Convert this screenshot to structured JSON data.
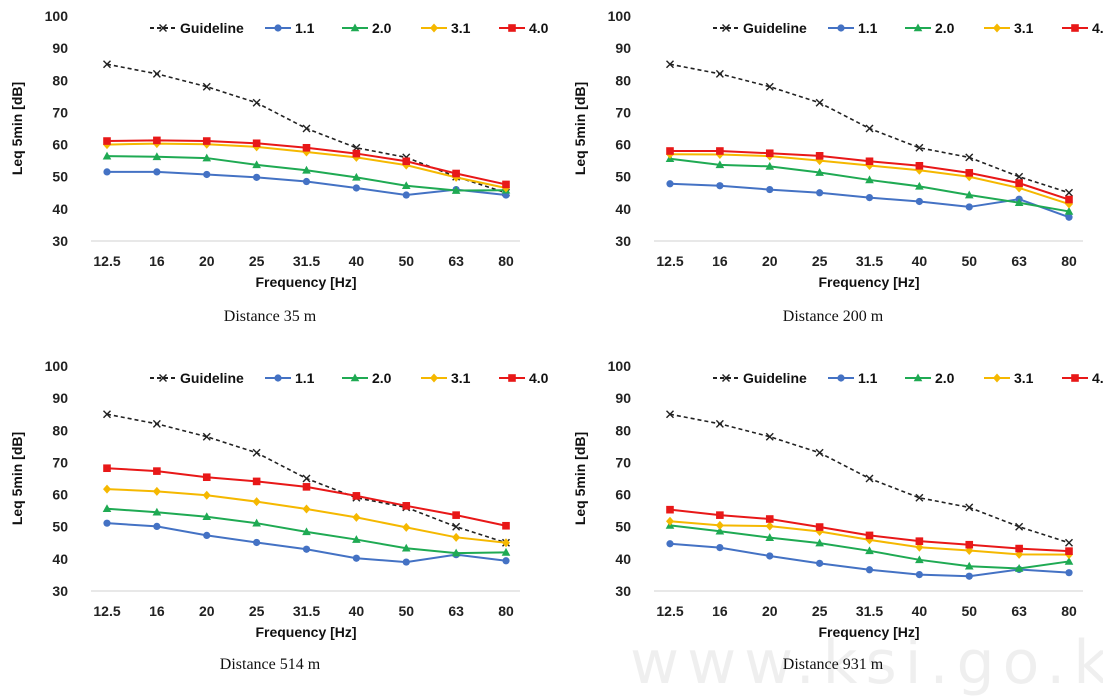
{
  "watermark": "www.ksi.go.kr",
  "legend": [
    {
      "name": "Guideline",
      "color": "#222222",
      "dash": true,
      "marker": "x"
    },
    {
      "name": "1.1",
      "color": "#4472C4",
      "dash": false,
      "marker": "circle"
    },
    {
      "name": "2.0",
      "color": "#1FAA53",
      "dash": false,
      "marker": "triangle"
    },
    {
      "name": "3.1",
      "color": "#F5B800",
      "dash": false,
      "marker": "diamond"
    },
    {
      "name": "4.0",
      "color": "#E81818",
      "dash": false,
      "marker": "square"
    }
  ],
  "chart_data": [
    {
      "type": "line",
      "caption": "Distance 35 m",
      "xlabel": "Frequency [Hz]",
      "ylabel": "Leq 5min [dB]",
      "categories": [
        "12.5",
        "16",
        "20",
        "25",
        "31.5",
        "40",
        "50",
        "63",
        "80"
      ],
      "ylim": [
        30,
        100
      ],
      "yticks": [
        "30",
        "40",
        "50",
        "60",
        "70",
        "80",
        "90",
        "100"
      ],
      "legend_position": "top",
      "series": [
        {
          "name": "Guideline",
          "values": [
            85,
            82,
            78,
            73,
            65,
            59,
            56,
            50,
            45
          ]
        },
        {
          "name": "1.1",
          "values": [
            51.5,
            51.5,
            50.7,
            49.8,
            48.5,
            46.5,
            44.3,
            46.0,
            44.3
          ]
        },
        {
          "name": "2.0",
          "values": [
            56.4,
            56.2,
            55.8,
            53.7,
            52.0,
            49.8,
            47.2,
            45.7,
            45.8
          ]
        },
        {
          "name": "3.1",
          "values": [
            60.0,
            60.3,
            60.1,
            59.3,
            57.7,
            56.0,
            53.6,
            49.8,
            46.5
          ]
        },
        {
          "name": "4.0",
          "values": [
            61.1,
            61.3,
            61.1,
            60.4,
            59.0,
            57.2,
            54.8,
            51.0,
            47.6
          ]
        }
      ]
    },
    {
      "type": "line",
      "caption": "Distance 200 m",
      "xlabel": "Frequency [Hz]",
      "ylabel": "Leq 5min [dB]",
      "categories": [
        "12.5",
        "16",
        "20",
        "25",
        "31.5",
        "40",
        "50",
        "63",
        "80"
      ],
      "ylim": [
        30,
        100
      ],
      "yticks": [
        "30",
        "40",
        "50",
        "60",
        "70",
        "80",
        "90",
        "100"
      ],
      "legend_position": "top",
      "series": [
        {
          "name": "Guideline",
          "values": [
            85,
            82,
            78,
            73,
            65,
            59,
            56,
            50,
            45
          ]
        },
        {
          "name": "1.1",
          "values": [
            47.8,
            47.2,
            46.0,
            45.0,
            43.5,
            42.3,
            40.6,
            43.0,
            37.4
          ]
        },
        {
          "name": "2.0",
          "values": [
            55.6,
            53.7,
            53.2,
            51.3,
            49.0,
            47.0,
            44.3,
            41.9,
            39.2
          ]
        },
        {
          "name": "3.1",
          "values": [
            57.0,
            56.9,
            56.4,
            55.0,
            53.5,
            52.0,
            50.0,
            46.5,
            41.5
          ]
        },
        {
          "name": "4.0",
          "values": [
            58.0,
            58.0,
            57.3,
            56.5,
            54.8,
            53.4,
            51.2,
            48.0,
            42.9
          ]
        }
      ]
    },
    {
      "type": "line",
      "caption": "Distance 514 m",
      "xlabel": "Frequency [Hz]",
      "ylabel": "Leq 5min [dB]",
      "categories": [
        "12.5",
        "16",
        "20",
        "25",
        "31.5",
        "40",
        "50",
        "63",
        "80"
      ],
      "ylim": [
        30,
        100
      ],
      "yticks": [
        "30",
        "40",
        "50",
        "60",
        "70",
        "80",
        "90",
        "100"
      ],
      "legend_position": "top",
      "series": [
        {
          "name": "Guideline",
          "values": [
            85,
            82,
            78,
            73,
            65,
            59,
            56,
            50,
            45
          ]
        },
        {
          "name": "1.1",
          "values": [
            51.1,
            50.1,
            47.3,
            45.1,
            43.0,
            40.2,
            39.0,
            41.3,
            39.4
          ]
        },
        {
          "name": "2.0",
          "values": [
            55.6,
            54.5,
            53.1,
            51.1,
            48.4,
            46.0,
            43.3,
            41.8,
            42.0
          ]
        },
        {
          "name": "3.1",
          "values": [
            61.7,
            61.0,
            59.8,
            57.8,
            55.5,
            52.9,
            49.8,
            46.7,
            45.0
          ]
        },
        {
          "name": "4.0",
          "values": [
            68.2,
            67.3,
            65.4,
            64.1,
            62.4,
            59.6,
            56.5,
            53.6,
            50.3
          ]
        }
      ]
    },
    {
      "type": "line",
      "caption": "Distance 931 m",
      "xlabel": "Frequency [Hz]",
      "ylabel": "Leq 5min [dB]",
      "categories": [
        "12.5",
        "16",
        "20",
        "25",
        "31.5",
        "40",
        "50",
        "63",
        "80"
      ],
      "ylim": [
        30,
        100
      ],
      "yticks": [
        "30",
        "40",
        "50",
        "60",
        "70",
        "80",
        "90",
        "100"
      ],
      "legend_position": "top",
      "series": [
        {
          "name": "Guideline",
          "values": [
            85,
            82,
            78,
            73,
            65,
            59,
            56,
            50,
            45
          ]
        },
        {
          "name": "1.1",
          "values": [
            44.7,
            43.5,
            40.9,
            38.6,
            36.6,
            35.1,
            34.6,
            36.7,
            35.7
          ]
        },
        {
          "name": "2.0",
          "values": [
            50.4,
            48.6,
            46.6,
            44.9,
            42.5,
            39.7,
            37.7,
            37.0,
            39.2
          ]
        },
        {
          "name": "3.1",
          "values": [
            51.7,
            50.4,
            50.2,
            48.5,
            45.9,
            43.6,
            42.6,
            41.4,
            41.3
          ]
        },
        {
          "name": "4.0",
          "values": [
            55.3,
            53.6,
            52.4,
            49.9,
            47.3,
            45.5,
            44.4,
            43.2,
            42.4
          ]
        }
      ]
    }
  ]
}
